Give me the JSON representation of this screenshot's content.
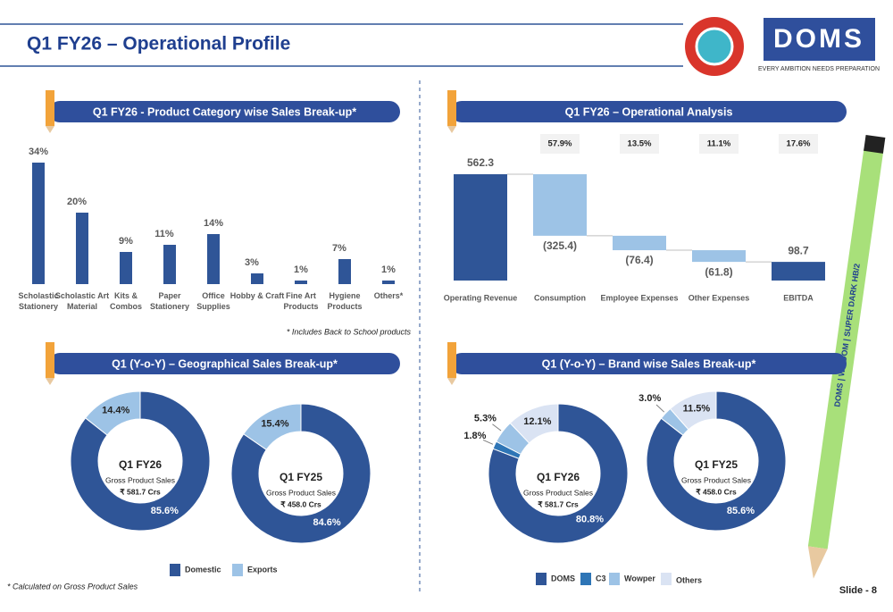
{
  "header": {
    "title": "Q1 FY26 – Operational Profile",
    "logo": "DOMS",
    "tagline": "EVERY AMBITION NEEDS PREPARATION"
  },
  "pencil_label": "DOMS | WIZDOM | SUPER DARK HB/2",
  "footnote": "* Calculated on Gross Product Sales",
  "slide": "Slide - 8",
  "chart_data": [
    {
      "type": "bar",
      "title": "Q1 FY26 - Product Category wise Sales Break-up*",
      "categories": [
        "Scholastic Stationery",
        "Scholastic Art Material",
        "Kits & Combos",
        "Paper Stationery",
        "Office Supplies",
        "Hobby & Craft",
        "Fine Art Products",
        "Hygiene Products",
        "Others*"
      ],
      "values": [
        34,
        20,
        9,
        11,
        14,
        3,
        1,
        7,
        1
      ],
      "value_labels": [
        "34%",
        "20%",
        "9%",
        "11%",
        "14%",
        "3%",
        "1%",
        "7%",
        "1%"
      ],
      "color": "#2f5597",
      "note": "* Includes Back to School products"
    },
    {
      "type": "waterfall",
      "title": "Q1 FY26 – Operational Analysis",
      "categories": [
        "Operating Revenue",
        "Consumption",
        "Employee Expenses",
        "Other Expenses",
        "EBITDA"
      ],
      "values": [
        562.3,
        -325.4,
        -76.4,
        -61.8,
        98.7
      ],
      "value_labels": [
        "562.3",
        "(325.4)",
        "(76.4)",
        "(61.8)",
        "98.7"
      ],
      "shares": [
        57.9,
        13.5,
        11.1,
        17.6
      ],
      "share_labels": [
        "57.9%",
        "13.5%",
        "11.1%",
        "17.6%"
      ],
      "total_color": "#2f5597",
      "change_color": "#9dc3e6"
    },
    {
      "type": "donut",
      "title": "Q1 (Y-o-Y) – Geographical Sales Break-up*",
      "series": [
        {
          "name": "Domestic",
          "color": "#2f5597"
        },
        {
          "name": "Exports",
          "color": "#9dc3e6"
        }
      ],
      "pies": [
        {
          "title": "Q1 FY26",
          "subtitle": "Gross Product Sales",
          "total": "₹ 581.7 Crs",
          "values": [
            85.6,
            14.4
          ],
          "value_labels": [
            "85.6%",
            "14.4%"
          ]
        },
        {
          "title": "Q1 FY25",
          "subtitle": "Gross Product Sales",
          "total": "₹ 458.0 Crs",
          "values": [
            84.6,
            15.4
          ],
          "value_labels": [
            "84.6%",
            "15.4%"
          ]
        }
      ]
    },
    {
      "type": "donut",
      "title": "Q1 (Y-o-Y) – Brand wise Sales Break-up*",
      "series": [
        {
          "name": "DOMS",
          "color": "#2f5597"
        },
        {
          "name": "C3",
          "color": "#2e75b6"
        },
        {
          "name": "Wowper",
          "color": "#9dc3e6"
        },
        {
          "name": "Others",
          "color": "#dae3f3"
        }
      ],
      "pies": [
        {
          "title": "Q1 FY26",
          "subtitle": "Gross Product Sales",
          "total": "₹ 581.7 Crs",
          "values": [
            80.8,
            1.8,
            5.3,
            12.1
          ],
          "value_labels": [
            "80.8%",
            "1.8%",
            "5.3%",
            "12.1%"
          ]
        },
        {
          "title": "Q1 FY25",
          "subtitle": "Gross Product Sales",
          "total": "₹ 458.0 Crs",
          "values": [
            85.6,
            null,
            3.0,
            11.5
          ],
          "value_labels": [
            "85.6%",
            null,
            "3.0%",
            "11.5%"
          ]
        }
      ]
    }
  ]
}
